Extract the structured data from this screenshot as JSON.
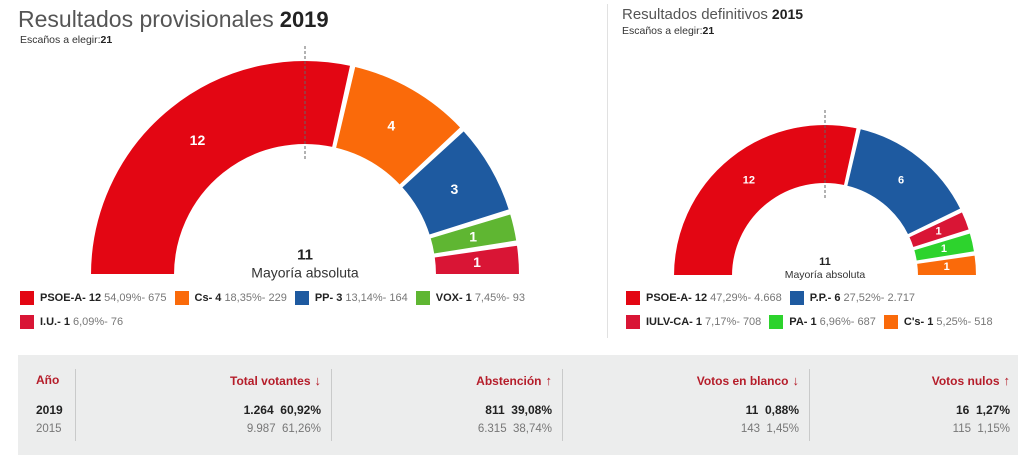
{
  "left": {
    "title": "Resultados provisionales",
    "year": "2019",
    "seats_label": "Escaños a elegir:",
    "seats_value": "21",
    "majority_number": "11",
    "majority_label": "Mayoría absoluta"
  },
  "right": {
    "title": "Resultados definitivos",
    "year": "2015",
    "seats_label": "Escaños a elegir:",
    "seats_value": "21",
    "majority_number": "11",
    "majority_label": "Mayoría absoluta"
  },
  "chart_data": [
    {
      "type": "parliament_hemicycle",
      "title": "Resultados provisionales 2019",
      "total_seats": 21,
      "majority": 11,
      "parties": [
        {
          "name": "PSOE-A",
          "seats": 12,
          "percent": "54,09%",
          "votes": "675",
          "color": "#e30613"
        },
        {
          "name": "Cs",
          "seats": 4,
          "percent": "18,35%",
          "votes": "229",
          "color": "#fa6a0a"
        },
        {
          "name": "PP",
          "seats": 3,
          "percent": "13,14%",
          "votes": "164",
          "color": "#1e5aa0"
        },
        {
          "name": "VOX",
          "seats": 1,
          "percent": "7,45%",
          "votes": "93",
          "color": "#5fb632"
        },
        {
          "name": "I.U.",
          "seats": 1,
          "percent": "6,09%",
          "votes": "76",
          "color": "#d91535"
        }
      ]
    },
    {
      "type": "parliament_hemicycle",
      "title": "Resultados definitivos 2015",
      "total_seats": 21,
      "majority": 11,
      "parties": [
        {
          "name": "PSOE-A",
          "seats": 12,
          "percent": "47,29%",
          "votes": "4.668",
          "color": "#e30613"
        },
        {
          "name": "P.P.",
          "seats": 6,
          "percent": "27,52%",
          "votes": "2.717",
          "color": "#1e5aa0"
        },
        {
          "name": "IULV-CA",
          "seats": 1,
          "percent": "7,17%",
          "votes": "708",
          "color": "#d91535"
        },
        {
          "name": "PA",
          "seats": 1,
          "percent": "6,96%",
          "votes": "687",
          "color": "#2dd32d"
        },
        {
          "name": "C's",
          "seats": 1,
          "percent": "5,25%",
          "votes": "518",
          "color": "#fa6a0a"
        }
      ]
    }
  ],
  "stats": {
    "headers": {
      "year": "Año",
      "total": "Total votantes",
      "abst": "Abstención",
      "blank": "Votos en blanco",
      "null": "Votos nulos"
    },
    "arrows": {
      "total": "↓",
      "abst": "↑",
      "blank": "↓",
      "null": "↑"
    },
    "rows": [
      {
        "year": "2019",
        "total": "1.264",
        "total_pct": "60,92%",
        "abst": "811",
        "abst_pct": "39,08%",
        "blank": "11",
        "blank_pct": "0,88%",
        "null": "16",
        "null_pct": "1,27%"
      },
      {
        "year": "2015",
        "total": "9.987",
        "total_pct": "61,26%",
        "abst": "6.315",
        "abst_pct": "38,74%",
        "blank": "143",
        "blank_pct": "1,45%",
        "null": "115",
        "null_pct": "1,15%"
      }
    ]
  }
}
